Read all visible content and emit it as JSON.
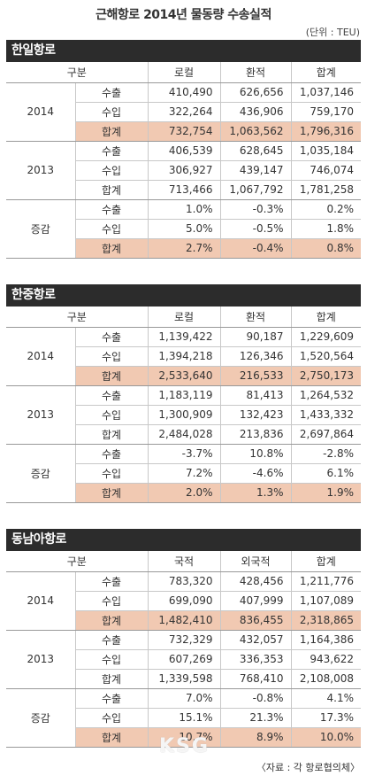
{
  "title": "근해항로 2014년 물동량 수송실적",
  "unit": "(단위 : TEU)",
  "source": "〈자료 : 각 항로협의체〉",
  "watermark": "KSG",
  "colors": {
    "header_bar": "#2c2c2c",
    "total_row": "#f1c9b2"
  },
  "sections": [
    {
      "title": "한일항로",
      "headers": [
        "구분",
        "로컬",
        "환적",
        "합계"
      ],
      "groups": [
        {
          "label": "2014",
          "rows": [
            {
              "label": "수출",
              "values": [
                "410,490",
                "626,656",
                "1,037,146"
              ]
            },
            {
              "label": "수입",
              "values": [
                "322,264",
                "436,906",
                "759,170"
              ]
            },
            {
              "label": "합계",
              "values": [
                "732,754",
                "1,063,562",
                "1,796,316"
              ]
            }
          ]
        },
        {
          "label": "2013",
          "rows": [
            {
              "label": "수출",
              "values": [
                "406,539",
                "628,645",
                "1,035,184"
              ]
            },
            {
              "label": "수입",
              "values": [
                "306,927",
                "439,147",
                "746,074"
              ]
            },
            {
              "label": "합계",
              "values": [
                "713,466",
                "1,067,792",
                "1,781,258"
              ]
            }
          ]
        },
        {
          "label": "증감",
          "rows": [
            {
              "label": "수출",
              "values": [
                "1.0%",
                "-0.3%",
                "0.2%"
              ]
            },
            {
              "label": "수입",
              "values": [
                "5.0%",
                "-0.5%",
                "1.8%"
              ]
            },
            {
              "label": "합계",
              "values": [
                "2.7%",
                "-0.4%",
                "0.8%"
              ]
            }
          ]
        }
      ]
    },
    {
      "title": "한중항로",
      "headers": [
        "구분",
        "로컬",
        "환적",
        "합계"
      ],
      "groups": [
        {
          "label": "2014",
          "rows": [
            {
              "label": "수출",
              "values": [
                "1,139,422",
                "90,187",
                "1,229,609"
              ]
            },
            {
              "label": "수입",
              "values": [
                "1,394,218",
                "126,346",
                "1,520,564"
              ]
            },
            {
              "label": "합계",
              "values": [
                "2,533,640",
                "216,533",
                "2,750,173"
              ]
            }
          ]
        },
        {
          "label": "2013",
          "rows": [
            {
              "label": "수출",
              "values": [
                "1,183,119",
                "81,413",
                "1,264,532"
              ]
            },
            {
              "label": "수입",
              "values": [
                "1,300,909",
                "132,423",
                "1,433,332"
              ]
            },
            {
              "label": "합계",
              "values": [
                "2,484,028",
                "213,836",
                "2,697,864"
              ]
            }
          ]
        },
        {
          "label": "증감",
          "rows": [
            {
              "label": "수출",
              "values": [
                "-3.7%",
                "10.8%",
                "-2.8%"
              ]
            },
            {
              "label": "수입",
              "values": [
                "7.2%",
                "-4.6%",
                "6.1%"
              ]
            },
            {
              "label": "합계",
              "values": [
                "2.0%",
                "1.3%",
                "1.9%"
              ]
            }
          ]
        }
      ]
    },
    {
      "title": "동남아항로",
      "headers": [
        "구분",
        "국적",
        "외국적",
        "합계"
      ],
      "groups": [
        {
          "label": "2014",
          "rows": [
            {
              "label": "수출",
              "values": [
                "783,320",
                "428,456",
                "1,211,776"
              ]
            },
            {
              "label": "수입",
              "values": [
                "699,090",
                "407,999",
                "1,107,089"
              ]
            },
            {
              "label": "합계",
              "values": [
                "1,482,410",
                "836,455",
                "2,318,865"
              ]
            }
          ]
        },
        {
          "label": "2013",
          "rows": [
            {
              "label": "수출",
              "values": [
                "732,329",
                "432,057",
                "1,164,386"
              ]
            },
            {
              "label": "수입",
              "values": [
                "607,269",
                "336,353",
                "943,622"
              ]
            },
            {
              "label": "합계",
              "values": [
                "1,339,598",
                "768,410",
                "2,108,008"
              ]
            }
          ]
        },
        {
          "label": "증감",
          "rows": [
            {
              "label": "수출",
              "values": [
                "7.0%",
                "-0.8%",
                "4.1%"
              ]
            },
            {
              "label": "수입",
              "values": [
                "15.1%",
                "21.3%",
                "17.3%"
              ]
            },
            {
              "label": "합계",
              "values": [
                "10.7%",
                "8.9%",
                "10.0%"
              ]
            }
          ]
        }
      ]
    }
  ]
}
